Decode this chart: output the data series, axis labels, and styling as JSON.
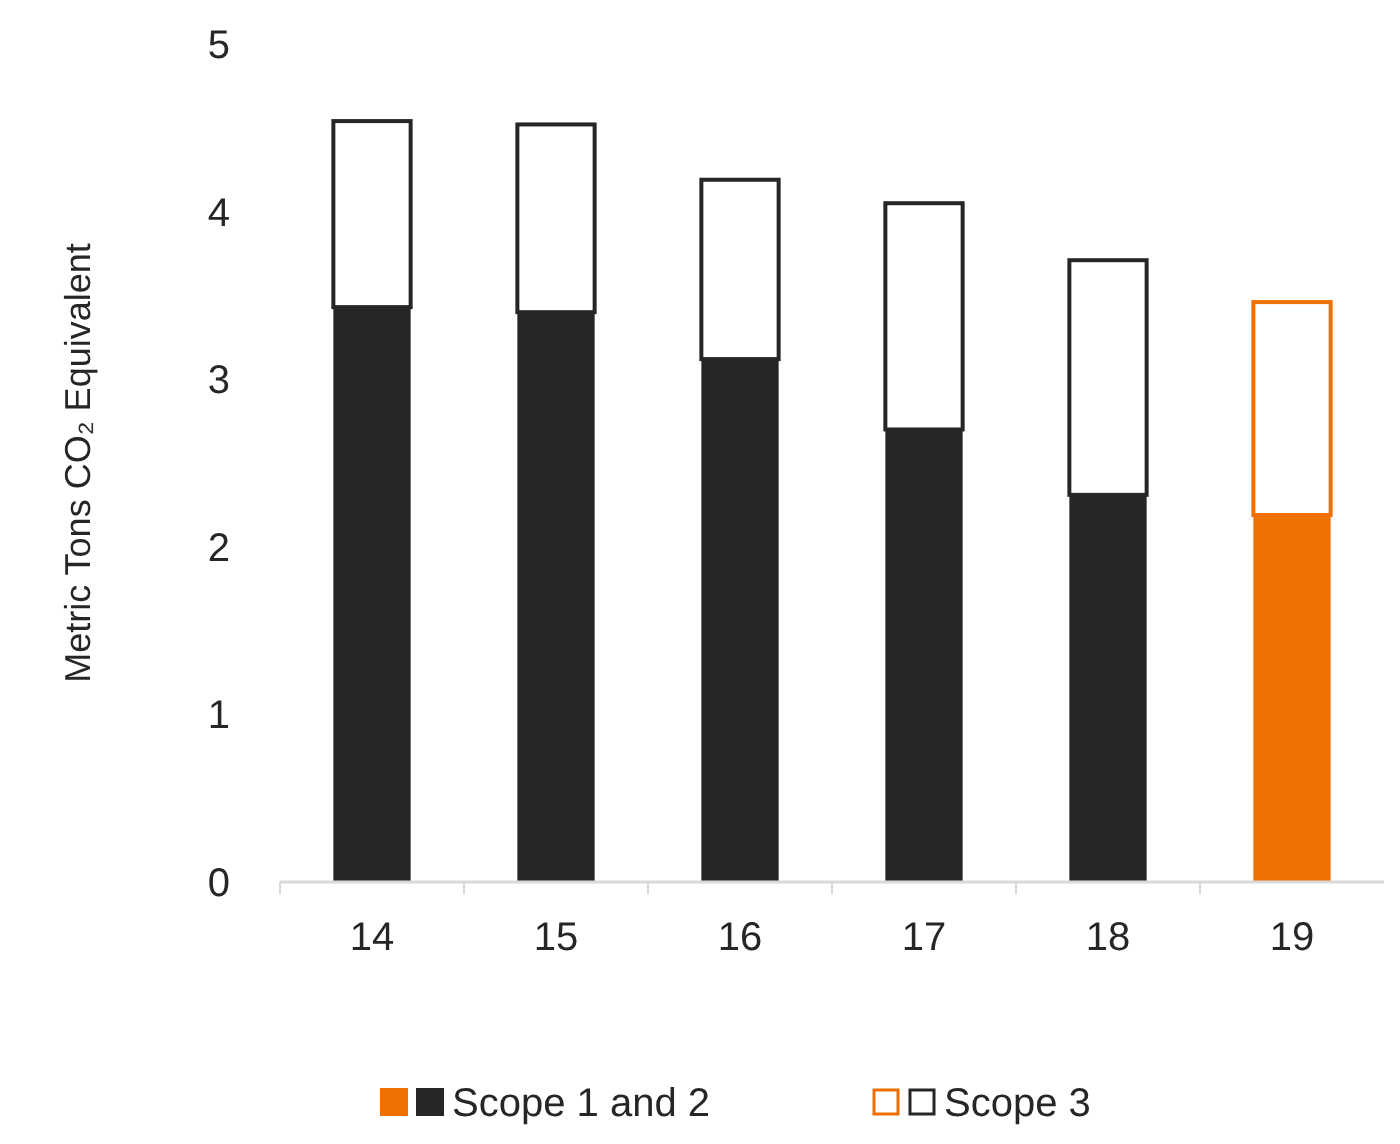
{
  "chart_data": {
    "type": "bar",
    "stacked": true,
    "ylabel": "Metric Tons CO₂ Equivalent",
    "categories": [
      "14",
      "15",
      "16",
      "17",
      "18",
      "19"
    ],
    "series": [
      {
        "name": "Scope 1 and 2",
        "colors": [
          "#262626",
          "#262626",
          "#262626",
          "#262626",
          "#262626",
          "#ed7000"
        ],
        "values": [
          3.43,
          3.4,
          3.12,
          2.7,
          2.31,
          2.19
        ]
      },
      {
        "name": "Scope 3",
        "colors": [
          "#262626",
          "#262626",
          "#262626",
          "#262626",
          "#262626",
          "#ed7000"
        ],
        "values": [
          1.11,
          1.12,
          1.07,
          1.35,
          1.4,
          1.27
        ]
      }
    ],
    "ylim": [
      0,
      5
    ],
    "yticks": [
      0,
      1,
      2,
      3,
      4,
      5
    ],
    "grid": false,
    "legend": "bottom"
  }
}
